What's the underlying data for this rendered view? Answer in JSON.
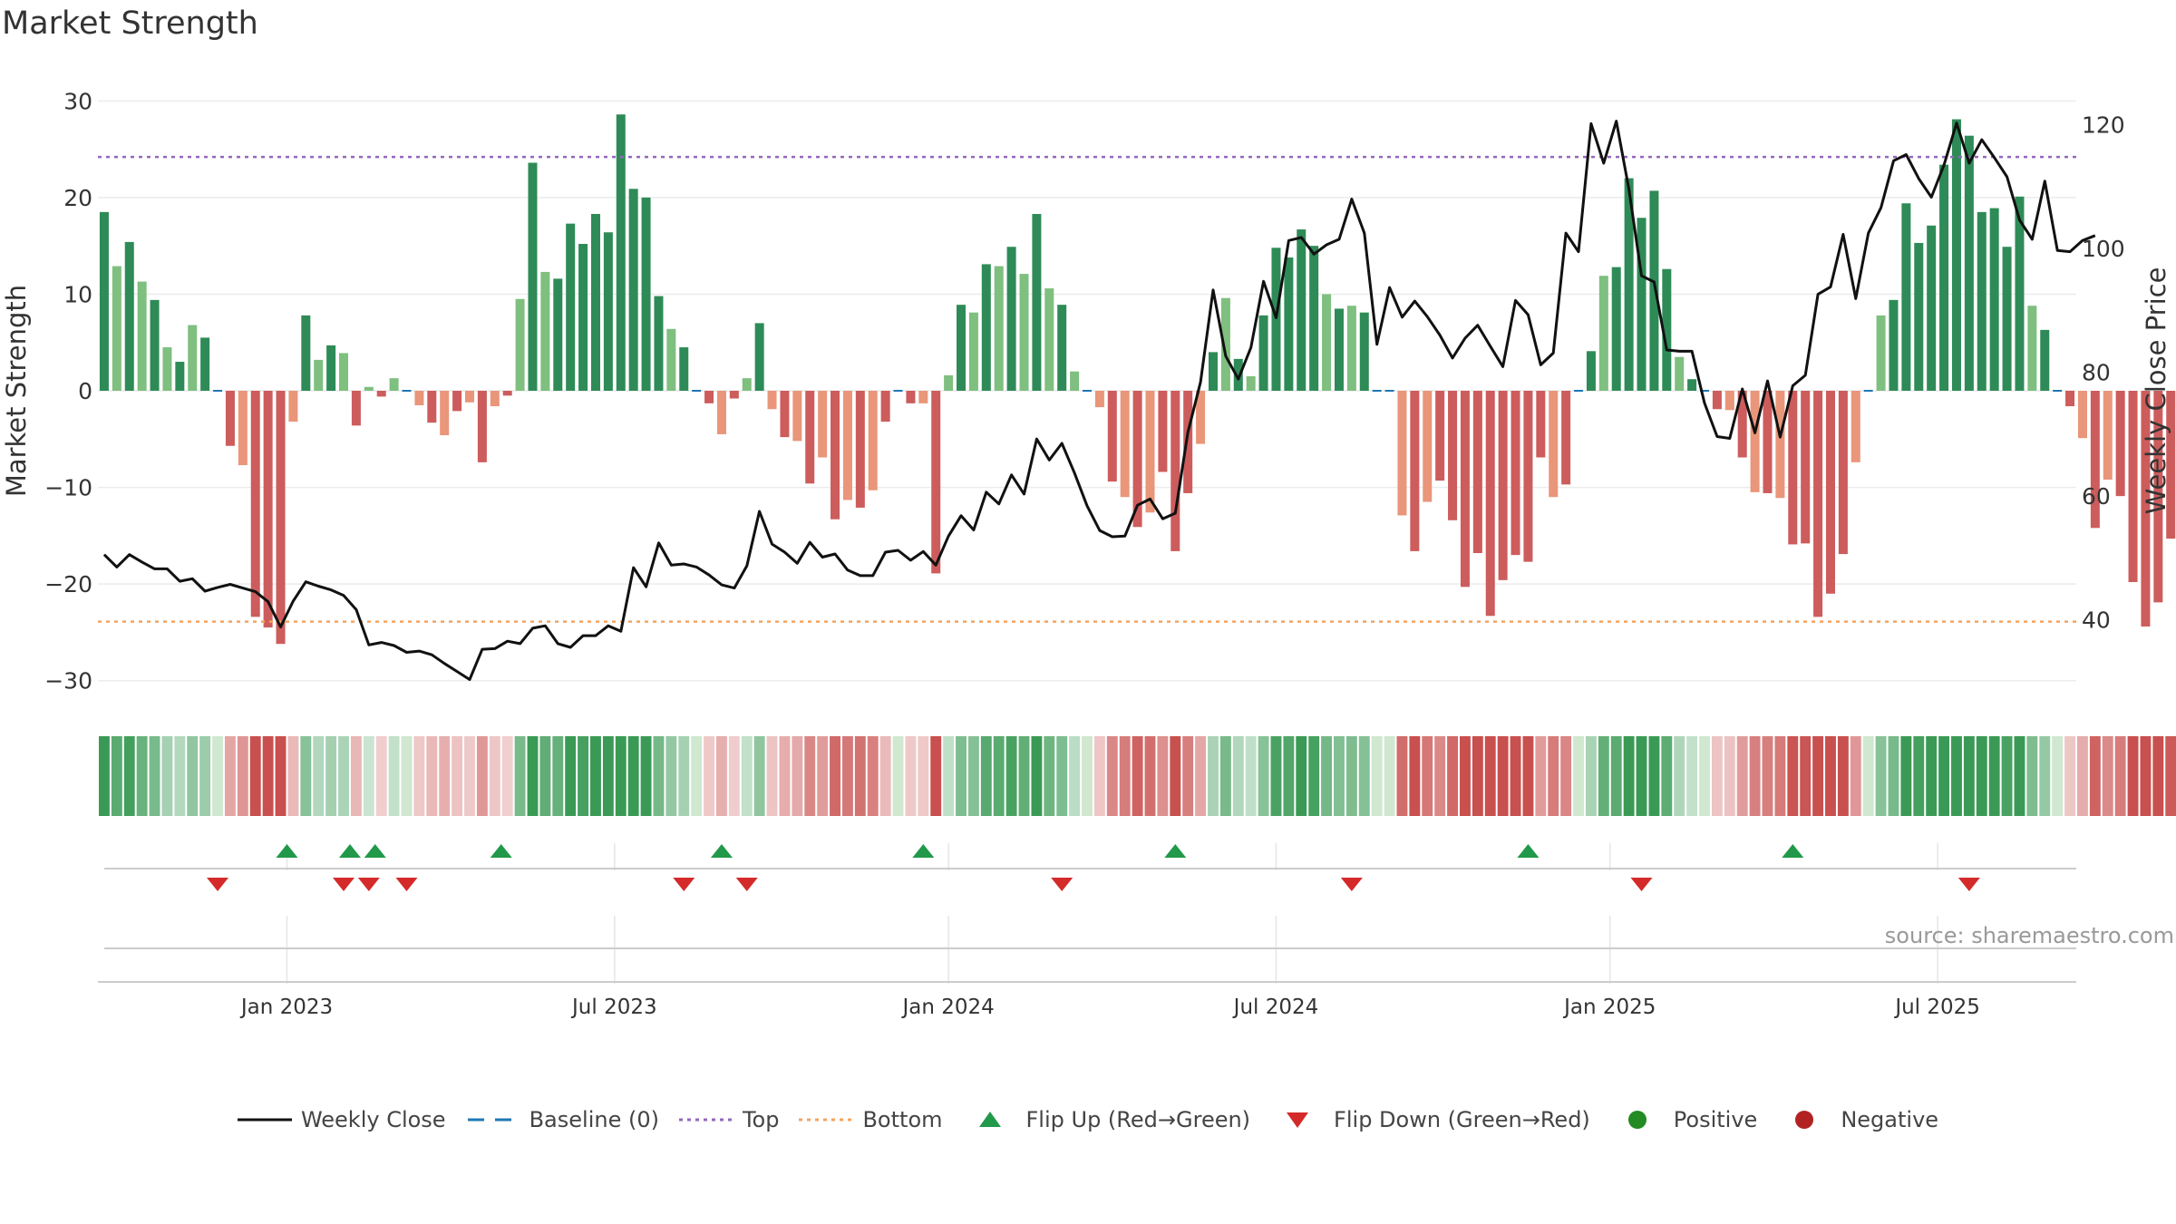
{
  "title": "Market Strength",
  "source": "source: sharemaestro.com",
  "colors": {
    "green_dark": "#2e8b57",
    "green_light": "#7fbf7f",
    "red_dark": "#cd5c5c",
    "red_light": "#e9967a",
    "line": "#111111",
    "baseline": "#1f77b4",
    "top": "#9467bd",
    "bottom": "#f4a460",
    "flip_up": "#22994a",
    "flip_down": "#d42a2a",
    "positive": "#228b22",
    "negative": "#b22222"
  },
  "legend": [
    {
      "key": "weekly_close",
      "label": "Weekly Close",
      "sym": "line"
    },
    {
      "key": "baseline",
      "label": "Baseline (0)",
      "sym": "dash"
    },
    {
      "key": "top",
      "label": "Top",
      "sym": "dot-purple"
    },
    {
      "key": "bottom",
      "label": "Bottom",
      "sym": "dot-orange"
    },
    {
      "key": "flip_up",
      "label": "Flip Up (Red→Green)",
      "sym": "tri-up"
    },
    {
      "key": "flip_down",
      "label": "Flip Down (Green→Red)",
      "sym": "tri-down"
    },
    {
      "key": "positive",
      "label": "Positive",
      "sym": "dot-green"
    },
    {
      "key": "negative",
      "label": "Negative",
      "sym": "dot-red"
    }
  ],
  "chart_data": {
    "type": "bar",
    "title": "Market Strength",
    "ylabel": "Market Strength",
    "y2label": "Weekly Close Price",
    "ylim": [
      -32,
      32
    ],
    "y2lim": [
      27,
      127
    ],
    "yticks": [
      30,
      20,
      10,
      0,
      -10,
      -20,
      -30
    ],
    "ytick_labels": [
      "30",
      "20",
      "10",
      "0",
      "−10",
      "−20",
      "−30"
    ],
    "y2ticks": [
      120,
      100,
      80,
      60,
      40
    ],
    "y2tick_labels": [
      "120",
      "100",
      "80",
      "60",
      "40"
    ],
    "top_level": 24.2,
    "bottom_level": -23.9,
    "x_range": [
      0,
      157
    ],
    "xticks": [
      {
        "pos": 15,
        "label": "Jan 2023"
      },
      {
        "pos": 41,
        "label": "Jul 2023"
      },
      {
        "pos": 67.5,
        "label": "Jan 2024"
      },
      {
        "pos": 93.5,
        "label": "Jul 2024"
      },
      {
        "pos": 120,
        "label": "Jan 2025"
      },
      {
        "pos": 146,
        "label": "Jul 2025"
      }
    ],
    "strength": [
      18.5,
      12.9,
      15.4,
      11.3,
      9.4,
      4.5,
      3,
      6.8,
      5.5,
      0,
      -5.7,
      -7.7,
      -23.4,
      -24.5,
      -26.2,
      -3.2,
      7.8,
      3.2,
      4.7,
      3.9,
      -3.6,
      0.4,
      -0.6,
      1.3,
      0,
      -1.5,
      -3.3,
      -4.6,
      -2.1,
      -1.2,
      -7.4,
      -1.6,
      -0.5,
      9.5,
      23.6,
      12.3,
      11.6,
      17.3,
      15.2,
      18.3,
      16.4,
      28.6,
      20.9,
      20,
      9.8,
      6.4,
      4.5,
      0,
      -1.3,
      -4.5,
      -0.8,
      1.3,
      7,
      -1.9,
      -4.8,
      -5.2,
      -9.6,
      -6.9,
      -13.3,
      -11.3,
      -12.1,
      -10.3,
      -3.2,
      0,
      -1.3,
      -1.3,
      -18.9,
      1.6,
      8.9,
      8.1,
      13.1,
      12.9,
      14.9,
      12.1,
      18.3,
      10.6,
      8.9,
      2,
      0,
      -1.7,
      -9.4,
      -11,
      -14.1,
      -12.6,
      -8.4,
      -16.6,
      -10.6,
      -5.5,
      4,
      9.6,
      3.3,
      1.5,
      7.8,
      14.8,
      13.8,
      16.7,
      15,
      10,
      8.5,
      8.8,
      8.1,
      0,
      0,
      -12.9,
      -16.6,
      -11.5,
      -9.3,
      -13.4,
      -20.3,
      -16.8,
      -23.3,
      -19.6,
      -17,
      -17.7,
      -6.9,
      -11,
      -9.7,
      0,
      4.1,
      11.9,
      12.8,
      22,
      17.9,
      20.7,
      12.6,
      3.5,
      1.2,
      0,
      -1.9,
      -2,
      -6.9,
      -10.5,
      -10.6,
      -11.1,
      -15.9,
      -15.8,
      -23.4,
      -21,
      -16.9,
      -7.4,
      0,
      7.8,
      9.4,
      19.4,
      15.3,
      17.1,
      23.4,
      28.1,
      26.4,
      18.5,
      18.9,
      14.9,
      20.1,
      8.8,
      6.3,
      0,
      -1.6,
      -4.9,
      -14.2,
      -9.2,
      -10.9,
      -19.8,
      -24.4,
      -21.9,
      -15.3
    ],
    "weekly_close": [
      50.5,
      48.5,
      50.5,
      49.3,
      48.2,
      48.2,
      46.2,
      46.6,
      44.6,
      45.2,
      45.7,
      45.1,
      44.5,
      42.9,
      38.8,
      43,
      46.1,
      45.4,
      44.8,
      43.9,
      41.6,
      35.9,
      36.3,
      35.8,
      34.7,
      34.9,
      34.3,
      32.9,
      31.6,
      30.3,
      35.2,
      35.3,
      36.5,
      36.1,
      38.6,
      39,
      36.1,
      35.5,
      37.4,
      37.4,
      39,
      38.1,
      48.4,
      45.3,
      52.4,
      48.8,
      49,
      48.5,
      47.2,
      45.6,
      45.1,
      48.7,
      57.5,
      52.2,
      50.9,
      49.1,
      52.5,
      50.1,
      50.6,
      48,
      47.1,
      47.1,
      50.9,
      51.2,
      49.6,
      51,
      48.8,
      53.5,
      56.8,
      54.5,
      60.6,
      58.7,
      63.4,
      60.3,
      69.2,
      65.8,
      68.5,
      63.7,
      58.4,
      54.4,
      53.4,
      53.5,
      58.5,
      59.5,
      56.3,
      57.2,
      70.3,
      78.4,
      93.3,
      82.6,
      78.9,
      84,
      94.7,
      88.8,
      101.3,
      101.8,
      99.1,
      100.6,
      101.5,
      108,
      102.5,
      84.5,
      93.7,
      88.9,
      91.5,
      89,
      86,
      82.3,
      85.5,
      87.6,
      84.2,
      80.9,
      91.6,
      89.3,
      81.2,
      83.1,
      102.5,
      99.5,
      120.2,
      113.8,
      120.6,
      109.6,
      95.6,
      94.6,
      83.6,
      83.4,
      83.4,
      75,
      69.6,
      69.3,
      77.3,
      70.2,
      78.6,
      69.5,
      77.8,
      79.5,
      92.6,
      93.8,
      102.3,
      91.9,
      102.5,
      106.6,
      114.2,
      115.2,
      111.3,
      108.3,
      113.5,
      120.3,
      113.8,
      117.6,
      114.7,
      111.6,
      104.6,
      101.5,
      110.9,
      99.7,
      99.5,
      101.3,
      102.1
    ],
    "flip_up_positions": [
      15,
      20,
      22,
      32,
      49.5,
      65.5,
      85.5,
      113.5,
      134.5
    ],
    "flip_down_positions": [
      9.5,
      19.5,
      21.5,
      24.5,
      46.5,
      51.5,
      76.5,
      99.5,
      122.5,
      148.5
    ],
    "series_labels": [
      "Weekly Close",
      "Baseline (0)",
      "Top",
      "Bottom",
      "Flip Up (Red→Green)",
      "Flip Down (Green→Red)",
      "Positive",
      "Negative"
    ]
  }
}
